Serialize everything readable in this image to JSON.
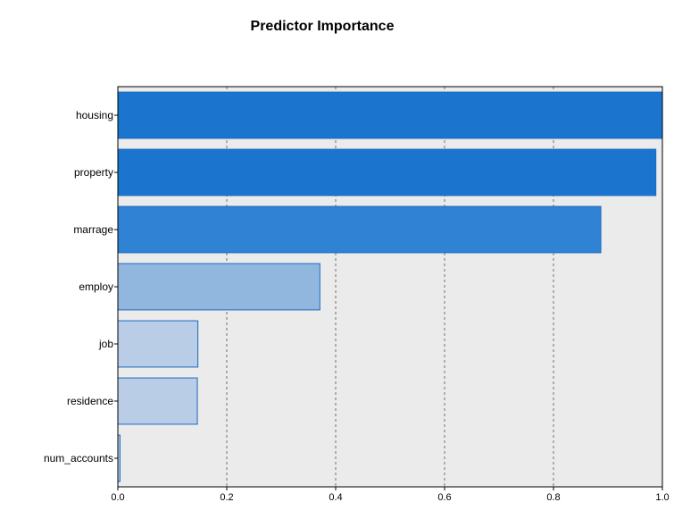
{
  "chart_data": {
    "type": "bar",
    "orientation": "horizontal",
    "title": "Predictor Importance",
    "xlabel": "",
    "ylabel": "",
    "xlim": [
      0,
      1
    ],
    "x_ticks": [
      "0.0",
      "0.2",
      "0.4",
      "0.6",
      "0.8",
      "1.0"
    ],
    "grid": "vertical dashed",
    "legend": "none",
    "categories": [
      "housing",
      "property",
      "marrage",
      "employ",
      "job",
      "residence",
      "num_accounts"
    ],
    "values": [
      1.0,
      0.988,
      0.887,
      0.371,
      0.147,
      0.146,
      0.004
    ],
    "bar_colors": [
      "#1b75cf",
      "#1b75cf",
      "#3083d4",
      "#92b7df",
      "#b9cde6",
      "#b9cde6",
      "#b9cde6"
    ],
    "bar_edge_color": "#1b6bbf",
    "plot_background": "#ebebeb"
  }
}
